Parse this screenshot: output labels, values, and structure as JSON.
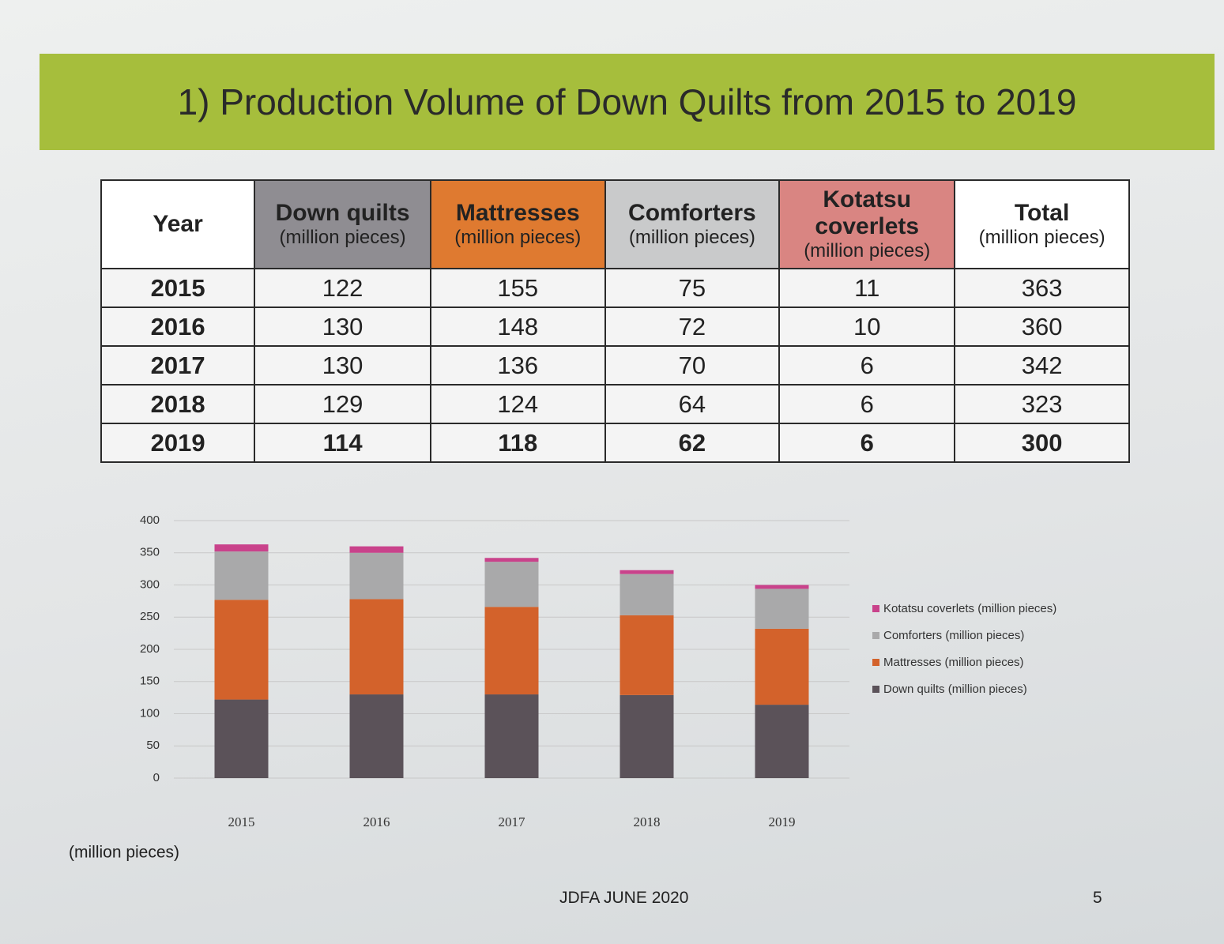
{
  "header": {
    "title": "1) Production Volume of Down Quilts  from 2015 to 2019"
  },
  "table": {
    "columns": [
      {
        "name": "Year"
      },
      {
        "name": "Down quilts",
        "unit": "(million pieces)"
      },
      {
        "name": "Mattresses",
        "unit": "(million pieces)"
      },
      {
        "name": "Comforters",
        "unit": "(million pieces)"
      },
      {
        "name": "Kotatsu coverlets",
        "unit": "(million pieces)"
      },
      {
        "name": "Total",
        "unit": "(million pieces)"
      }
    ],
    "column_colors": [
      "#ffffff",
      "#8f8d92",
      "#df7a30",
      "#c9cacb",
      "#d98582",
      "#ffffff"
    ],
    "rows": [
      [
        2015,
        122,
        155,
        75,
        11,
        363
      ],
      [
        2016,
        130,
        148,
        72,
        10,
        360
      ],
      [
        2017,
        130,
        136,
        70,
        6,
        342
      ],
      [
        2018,
        129,
        124,
        64,
        6,
        323
      ],
      [
        2019,
        114,
        118,
        62,
        6,
        300
      ]
    ]
  },
  "chart_data": {
    "type": "stacked-bar",
    "categories": [
      "2015",
      "2016",
      "2017",
      "2018",
      "2019"
    ],
    "series": [
      {
        "name": "Down quilts (million pieces)",
        "color": "#5b5259",
        "values": [
          122,
          130,
          130,
          129,
          114
        ]
      },
      {
        "name": "Mattresses (million pieces)",
        "color": "#d3622b",
        "values": [
          155,
          148,
          136,
          124,
          118
        ]
      },
      {
        "name": "Comforters (million pieces)",
        "color": "#a9a9aa",
        "values": [
          75,
          72,
          70,
          64,
          62
        ]
      },
      {
        "name": "Kotatsu coverlets (million pieces)",
        "color": "#c9428b",
        "values": [
          11,
          10,
          6,
          6,
          6
        ]
      }
    ],
    "ylim": [
      0,
      400
    ],
    "yticks": [
      0,
      50,
      100,
      150,
      200,
      250,
      300,
      350,
      400
    ],
    "y_label": "(million pieces)",
    "grid": true
  },
  "footer": {
    "text": "JDFA JUNE 2020",
    "page": "5"
  }
}
